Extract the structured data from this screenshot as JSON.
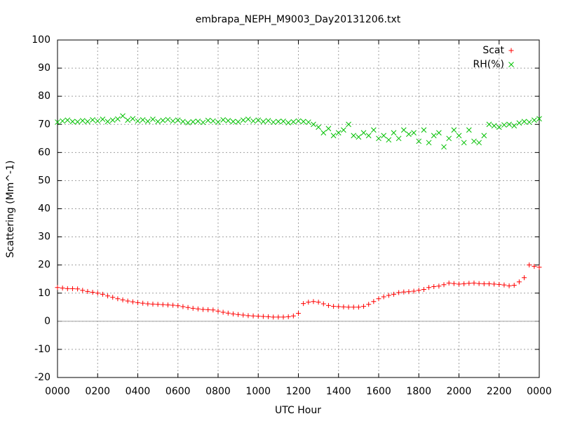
{
  "chart_data": {
    "type": "scatter",
    "title": "embrapa_NEPH_M9003_Day20131206.txt",
    "xlabel": "UTC Hour",
    "ylabel": "Scattering (Mm^-1)",
    "x": [
      0,
      0.25,
      0.5,
      0.75,
      1,
      1.25,
      1.5,
      1.75,
      2,
      2.25,
      2.5,
      2.75,
      3,
      3.25,
      3.5,
      3.75,
      4,
      4.25,
      4.5,
      4.75,
      5,
      5.25,
      5.5,
      5.75,
      6,
      6.25,
      6.5,
      6.75,
      7,
      7.25,
      7.5,
      7.75,
      8,
      8.25,
      8.5,
      8.75,
      9,
      9.25,
      9.5,
      9.75,
      10,
      10.25,
      10.5,
      10.75,
      11,
      11.25,
      11.5,
      11.75,
      12,
      12.25,
      12.5,
      12.75,
      13,
      13.25,
      13.5,
      13.75,
      14,
      14.25,
      14.5,
      14.75,
      15,
      15.25,
      15.5,
      15.75,
      16,
      16.25,
      16.5,
      16.75,
      17,
      17.25,
      17.5,
      17.75,
      18,
      18.25,
      18.5,
      18.75,
      19,
      19.25,
      19.5,
      19.75,
      20,
      20.25,
      20.5,
      20.75,
      21,
      21.25,
      21.5,
      21.75,
      22,
      22.25,
      22.5,
      22.75,
      23,
      23.25,
      23.5,
      23.75,
      24
    ],
    "series": [
      {
        "name": "Scat",
        "color": "#ff0000",
        "marker": "plus",
        "values": [
          12,
          11.8,
          11.6,
          11.6,
          11.5,
          11,
          10.6,
          10.3,
          10,
          9.6,
          9,
          8.5,
          8,
          7.6,
          7.2,
          6.9,
          6.6,
          6.4,
          6.2,
          6.1,
          6,
          5.9,
          5.8,
          5.7,
          5.5,
          5.2,
          4.9,
          4.6,
          4.4,
          4.2,
          4.1,
          4,
          3.6,
          3.2,
          2.9,
          2.6,
          2.4,
          2.2,
          2,
          1.9,
          1.8,
          1.7,
          1.6,
          1.5,
          1.5,
          1.5,
          1.6,
          1.9,
          2.8,
          6.3,
          6.8,
          7,
          6.8,
          6.2,
          5.6,
          5.3,
          5.2,
          5.1,
          5,
          5,
          5,
          5.3,
          6,
          7,
          8,
          8.7,
          9.2,
          9.6,
          10.2,
          10.4,
          10.5,
          10.7,
          11,
          11.3,
          12,
          12.3,
          12.5,
          13,
          13.6,
          13.4,
          13.2,
          13.3,
          13.5,
          13.6,
          13.4,
          13.3,
          13.3,
          13.2,
          13.1,
          12.9,
          12.6,
          12.8,
          14,
          15.5,
          20,
          19.5,
          19.2
        ]
      },
      {
        "name": "RH(%)",
        "color": "#00c000",
        "marker": "cross",
        "values": [
          70.8,
          71.2,
          71.5,
          71,
          70.9,
          71.3,
          71,
          71.6,
          71.2,
          71.8,
          71,
          71.5,
          71.9,
          73,
          71.5,
          72,
          71.2,
          71.6,
          71.1,
          71.8,
          71,
          71.4,
          71.7,
          71.2,
          71.5,
          71,
          70.6,
          70.9,
          71.1,
          70.7,
          71.4,
          71.2,
          70.8,
          71.6,
          71.3,
          71,
          70.9,
          71.5,
          71.8,
          71.2,
          71.5,
          71,
          71.3,
          70.8,
          71,
          71.1,
          70.6,
          70.9,
          71.2,
          71,
          70.8,
          70,
          69,
          67,
          68.5,
          66,
          67,
          68,
          70,
          66,
          65.5,
          67,
          66,
          68,
          65,
          66,
          64.5,
          67,
          65,
          68,
          66.5,
          67,
          64,
          68,
          63.5,
          66,
          67,
          62,
          65,
          68,
          66,
          63.5,
          68,
          64,
          63.5,
          66,
          70,
          69.5,
          69,
          69.8,
          70,
          69.5,
          70.5,
          71,
          70.8,
          71.5,
          72
        ]
      }
    ],
    "xlim": [
      0,
      24
    ],
    "xticks": [
      {
        "value": 0,
        "label": "0000"
      },
      {
        "value": 2,
        "label": "0200"
      },
      {
        "value": 4,
        "label": "0400"
      },
      {
        "value": 6,
        "label": "0600"
      },
      {
        "value": 8,
        "label": "0800"
      },
      {
        "value": 10,
        "label": "1000"
      },
      {
        "value": 12,
        "label": "1200"
      },
      {
        "value": 14,
        "label": "1400"
      },
      {
        "value": 16,
        "label": "1600"
      },
      {
        "value": 18,
        "label": "1800"
      },
      {
        "value": 20,
        "label": "2000"
      },
      {
        "value": 22,
        "label": "2200"
      },
      {
        "value": 24,
        "label": "0000"
      }
    ],
    "ylim": [
      -20,
      100
    ],
    "yticks": [
      -20,
      -10,
      0,
      10,
      20,
      30,
      40,
      50,
      60,
      70,
      80,
      90,
      100
    ],
    "grid": true,
    "zeroaxis": true,
    "legend": "upper right"
  }
}
